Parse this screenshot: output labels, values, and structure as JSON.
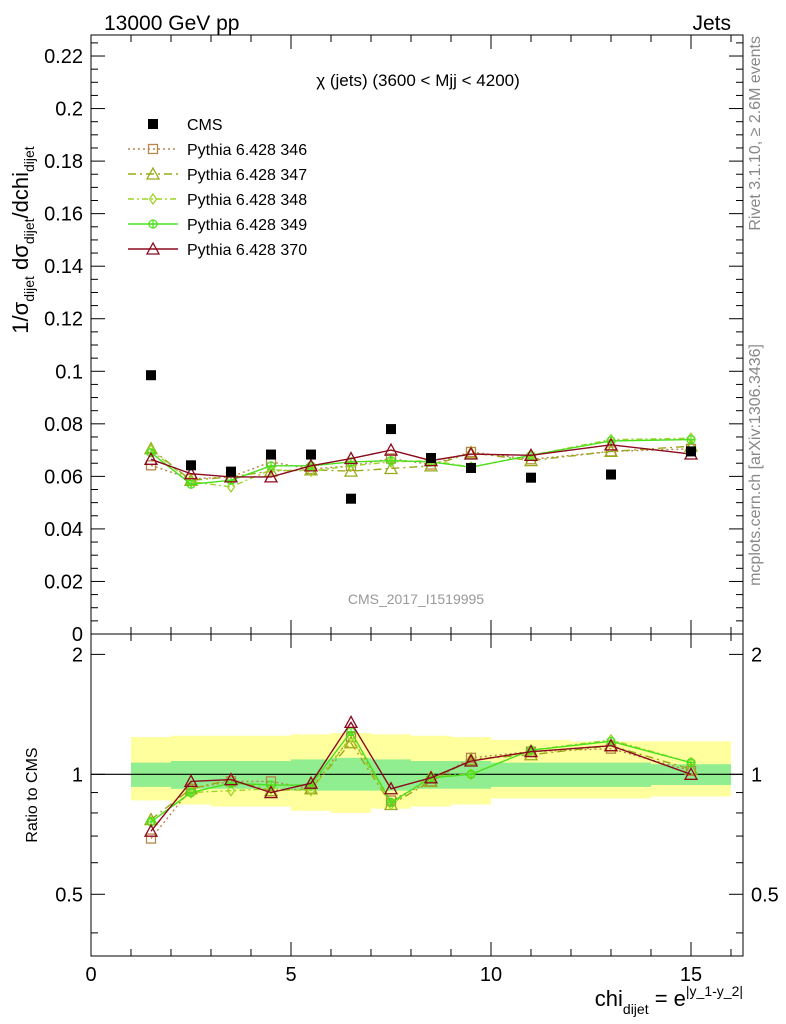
{
  "header": {
    "left": "13000 GeV pp",
    "right": "Jets",
    "side_top": "Rivet 3.1.10, ≥ 2.6M events",
    "side_bottom": "mcplots.cern.ch [arXiv:1306.3436]"
  },
  "chart_data": [
    {
      "type": "scatter",
      "panel": "main",
      "title": "χ (jets) (3600 < Mjj < 4200)",
      "watermark": "CMS_2017_I1519995",
      "ylabel": "1/σ_dijet dσ_dijet/dchi_dijet",
      "xlim": [
        0,
        16.3
      ],
      "ylim": [
        0,
        0.228
      ],
      "ytick_labels": [
        "0",
        "0.02",
        "0.04",
        "0.06",
        "0.08",
        "0.1",
        "0.12",
        "0.14",
        "0.16",
        "0.18",
        "0.2",
        "0.22"
      ],
      "legend_position": "top-left",
      "x": [
        1.5,
        2.5,
        3.5,
        4.5,
        5.5,
        6.5,
        7.5,
        8.5,
        9.5,
        11,
        13,
        15
      ],
      "series": [
        {
          "name": "CMS",
          "color": "#000000",
          "marker": "square",
          "values": [
            0.0985,
            0.0642,
            0.0618,
            0.0683,
            0.0683,
            0.0515,
            0.078,
            0.067,
            0.0632,
            0.0595,
            0.0607,
            0.0695
          ]
        },
        {
          "name": "Pythia 6.428 346",
          "color": "#b8864b",
          "marker": "open-square",
          "dash": "2,3",
          "values": [
            0.0642,
            0.059,
            0.0598,
            0.0655,
            0.0628,
            0.064,
            0.0668,
            0.0645,
            0.0693,
            0.0665,
            0.0695,
            0.0705
          ]
        },
        {
          "name": "Pythia 6.428 347",
          "color": "#9aaa17",
          "marker": "open-triangle",
          "dash": "8,4,2,4",
          "values": [
            0.0705,
            0.0585,
            0.0598,
            0.062,
            0.0625,
            0.062,
            0.063,
            0.064,
            0.069,
            0.066,
            0.0695,
            0.0715
          ]
        },
        {
          "name": "Pythia 6.428 348",
          "color": "#9ed42a",
          "marker": "open-diamond",
          "dash": "6,3,2,3",
          "values": [
            0.07,
            0.058,
            0.056,
            0.0625,
            0.062,
            0.064,
            0.0655,
            0.066,
            0.0635,
            0.068,
            0.074,
            0.0745
          ]
        },
        {
          "name": "Pythia 6.428 349",
          "color": "#4be01c",
          "marker": "open-cross",
          "dash": "",
          "values": [
            0.069,
            0.057,
            0.0585,
            0.064,
            0.064,
            0.0655,
            0.066,
            0.0655,
            0.0635,
            0.068,
            0.0735,
            0.074
          ]
        },
        {
          "name": "Pythia 6.428 370",
          "color": "#8b0a1e",
          "marker": "open-triangle",
          "dash": "",
          "values": [
            0.0665,
            0.061,
            0.0598,
            0.0598,
            0.064,
            0.0668,
            0.07,
            0.066,
            0.0685,
            0.068,
            0.072,
            0.0685
          ]
        }
      ]
    },
    {
      "type": "scatter",
      "panel": "ratio",
      "ylabel": "Ratio to CMS",
      "ylim": [
        0.35,
        2.25
      ],
      "ytick_labels": [
        "0.5",
        "1",
        "2"
      ],
      "xlabel": "chi_dijet = e^|y_1-y_2|",
      "xtick_labels": [
        "0",
        "5",
        "10",
        "15"
      ],
      "x": [
        1.5,
        2.5,
        3.5,
        4.5,
        5.5,
        6.5,
        7.5,
        8.5,
        9.5,
        11,
        13,
        15
      ],
      "bands": {
        "edges": [
          1,
          2,
          3,
          4,
          5,
          6,
          7,
          8,
          9,
          10,
          12,
          14,
          16
        ],
        "inner_color": "#90ee90",
        "outer_color": "#ffff9e",
        "inner": [
          [
            0.93,
            1.07
          ],
          [
            0.92,
            1.08
          ],
          [
            0.92,
            1.08
          ],
          [
            0.92,
            1.08
          ],
          [
            0.91,
            1.09
          ],
          [
            0.91,
            1.1
          ],
          [
            0.91,
            1.09
          ],
          [
            0.92,
            1.08
          ],
          [
            0.92,
            1.08
          ],
          [
            0.93,
            1.07
          ],
          [
            0.93,
            1.07
          ],
          [
            0.94,
            1.06
          ]
        ],
        "outer": [
          [
            0.86,
            1.24
          ],
          [
            0.84,
            1.25
          ],
          [
            0.83,
            1.25
          ],
          [
            0.83,
            1.25
          ],
          [
            0.81,
            1.26
          ],
          [
            0.8,
            1.27
          ],
          [
            0.82,
            1.26
          ],
          [
            0.83,
            1.25
          ],
          [
            0.84,
            1.24
          ],
          [
            0.87,
            1.22
          ],
          [
            0.87,
            1.21
          ],
          [
            0.88,
            1.21
          ]
        ]
      },
      "series": [
        {
          "name": "Pythia 6.428 346",
          "values": [
            0.69,
            0.92,
            0.96,
            0.96,
            0.92,
            1.24,
            0.86,
            0.96,
            1.1,
            1.14,
            1.16,
            1.02
          ]
        },
        {
          "name": "Pythia 6.428 347",
          "values": [
            0.77,
            0.92,
            0.97,
            0.91,
            0.92,
            1.2,
            0.84,
            0.96,
            1.09,
            1.12,
            1.18,
            1.03
          ]
        },
        {
          "name": "Pythia 6.428 348",
          "values": [
            0.76,
            0.9,
            0.91,
            0.92,
            0.91,
            1.24,
            0.84,
            0.99,
            1.0,
            1.15,
            1.22,
            1.07
          ]
        },
        {
          "name": "Pythia 6.428 349",
          "values": [
            0.76,
            0.9,
            0.95,
            0.94,
            0.94,
            1.28,
            0.85,
            0.98,
            1.0,
            1.15,
            1.21,
            1.07
          ]
        },
        {
          "name": "Pythia 6.428 370",
          "values": [
            0.72,
            0.96,
            0.97,
            0.9,
            0.95,
            1.35,
            0.92,
            0.98,
            1.08,
            1.14,
            1.18,
            1.0
          ]
        }
      ]
    }
  ]
}
